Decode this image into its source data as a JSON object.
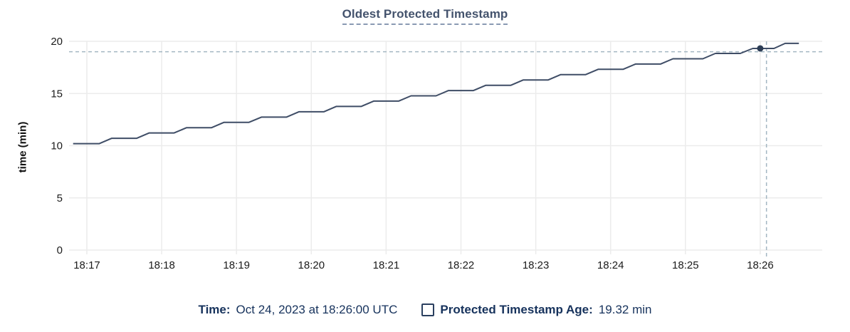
{
  "title": {
    "text": "Oldest Protected Timestamp"
  },
  "y_axis": {
    "label": "time (min)",
    "ticks": [
      0,
      5,
      10,
      15,
      20
    ],
    "range": [
      0,
      20
    ]
  },
  "x_axis": {
    "tick_labels": [
      "18:17",
      "18:18",
      "18:19",
      "18:20",
      "18:21",
      "18:22",
      "18:23",
      "18:24",
      "18:25",
      "18:26"
    ],
    "tick_seconds": [
      0,
      60,
      120,
      180,
      240,
      300,
      360,
      420,
      480,
      540
    ],
    "range_seconds": [
      -12.5,
      590
    ]
  },
  "legend": {
    "time_label": "Time:",
    "time_value": "Oct 24, 2023 at 18:26:00 UTC",
    "series_label": "Protected Timestamp Age:",
    "series_value": "19.32 min"
  },
  "chart_data": {
    "type": "line",
    "title": "Oldest Protected Timestamp",
    "xlabel": "",
    "ylabel": "time (min)",
    "ylim": [
      0,
      20
    ],
    "x_unit": "seconds after 18:26-minus-9min (18:17:00 UTC), Oct 24 2023",
    "grid": true,
    "legend_position": "bottom",
    "series": [
      {
        "name": "Protected Timestamp Age",
        "points": [
          [
            -11,
            10.2
          ],
          [
            10,
            10.2
          ],
          [
            20,
            10.71
          ],
          [
            40,
            10.71
          ],
          [
            50,
            11.22
          ],
          [
            70,
            11.22
          ],
          [
            80,
            11.73
          ],
          [
            100,
            11.73
          ],
          [
            110,
            12.24
          ],
          [
            130,
            12.24
          ],
          [
            140,
            12.74
          ],
          [
            160,
            12.74
          ],
          [
            170,
            13.25
          ],
          [
            190,
            13.25
          ],
          [
            200,
            13.76
          ],
          [
            220,
            13.76
          ],
          [
            230,
            14.27
          ],
          [
            250,
            14.27
          ],
          [
            260,
            14.78
          ],
          [
            280,
            14.78
          ],
          [
            290,
            15.28
          ],
          [
            310,
            15.28
          ],
          [
            320,
            15.79
          ],
          [
            340,
            15.79
          ],
          [
            350,
            16.3
          ],
          [
            370,
            16.3
          ],
          [
            380,
            16.81
          ],
          [
            400,
            16.81
          ],
          [
            410,
            17.32
          ],
          [
            430,
            17.32
          ],
          [
            440,
            17.82
          ],
          [
            460,
            17.82
          ],
          [
            470,
            18.33
          ],
          [
            494,
            18.33
          ],
          [
            504,
            18.84
          ],
          [
            524,
            18.84
          ],
          [
            534,
            19.32
          ],
          [
            551,
            19.32
          ],
          [
            560,
            19.8
          ],
          [
            571,
            19.8
          ]
        ]
      }
    ],
    "hover_point": {
      "t_seconds": 540,
      "time": "18:26:00",
      "value": 19.32
    },
    "crosshair": {
      "t_seconds": 545,
      "value": 19.0
    }
  },
  "colors": {
    "line": "#3f4d66",
    "dot": "#2c3d55",
    "crosshair": "#a3b6c2",
    "grid": "#ececec",
    "tick_text": "#1b1b1b",
    "title_text": "#44536d",
    "legend_text": "#16325c"
  }
}
